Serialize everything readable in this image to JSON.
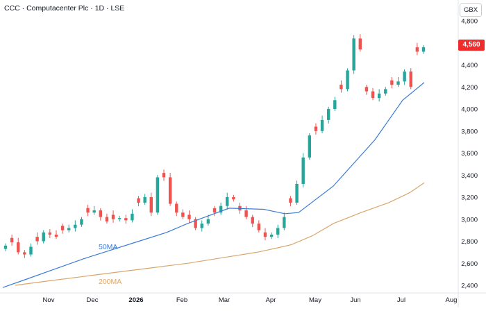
{
  "header": {
    "title": "CCC · Computacenter Plc · 1D · LSE",
    "currency": "GBX",
    "last_price": "4,560"
  },
  "colors": {
    "up": "#26a69a",
    "down": "#ef5350",
    "ma50": "#3a7bd5",
    "ma200": "#d9a66b",
    "price_tag": "#ef2b2b"
  },
  "chart_data": {
    "type": "candlestick",
    "title": "CCC · Computacenter Plc · 1D · LSE",
    "ylim": [
      2400,
      4800
    ],
    "y_ticks": [
      "2,400",
      "2,600",
      "2,800",
      "3,000",
      "3,200",
      "3,400",
      "3,600",
      "3,800",
      "4,000",
      "4,200",
      "4,400",
      "4,600",
      "4,800"
    ],
    "x_ticks": [
      "Nov",
      "Dec",
      "2026",
      "Feb",
      "Mar",
      "Apr",
      "May",
      "Jun",
      "Jul",
      "Aug"
    ],
    "grid": false,
    "series": [
      {
        "name": "50MA",
        "values": [
          2380,
          2460,
          2550,
          2640,
          2720,
          2800,
          2880,
          2960,
          3100,
          3090,
          3050,
          3060,
          3300,
          3720,
          4080,
          4240
        ]
      },
      {
        "name": "200MA",
        "values": [
          2400,
          2440,
          2480,
          2520,
          2560,
          2600,
          2650,
          2700,
          2740,
          2770,
          2850,
          2960,
          3060,
          3150,
          3240,
          3330
        ]
      }
    ],
    "candles_approx_close": [
      2760,
      2790,
      2700,
      2680,
      2750,
      2800,
      2880,
      2860,
      2840,
      2900,
      2920,
      2950,
      3000,
      3060,
      3080,
      3020,
      2980,
      3000,
      3010,
      2990,
      3050,
      3150,
      3200,
      3060,
      3380,
      3380,
      3140,
      3060,
      3020,
      3000,
      2920,
      2960,
      3000,
      3060,
      3120,
      3200,
      3180,
      3080,
      3020,
      2960,
      2900,
      2840,
      2860,
      2920,
      3020,
      3150,
      3320,
      3560,
      3760,
      3800,
      3900,
      4000,
      4080,
      4180,
      4350,
      4640,
      4540,
      4160,
      4100,
      4140,
      4180,
      4220,
      4250,
      4340,
      4200,
      4520,
      4560
    ]
  }
}
